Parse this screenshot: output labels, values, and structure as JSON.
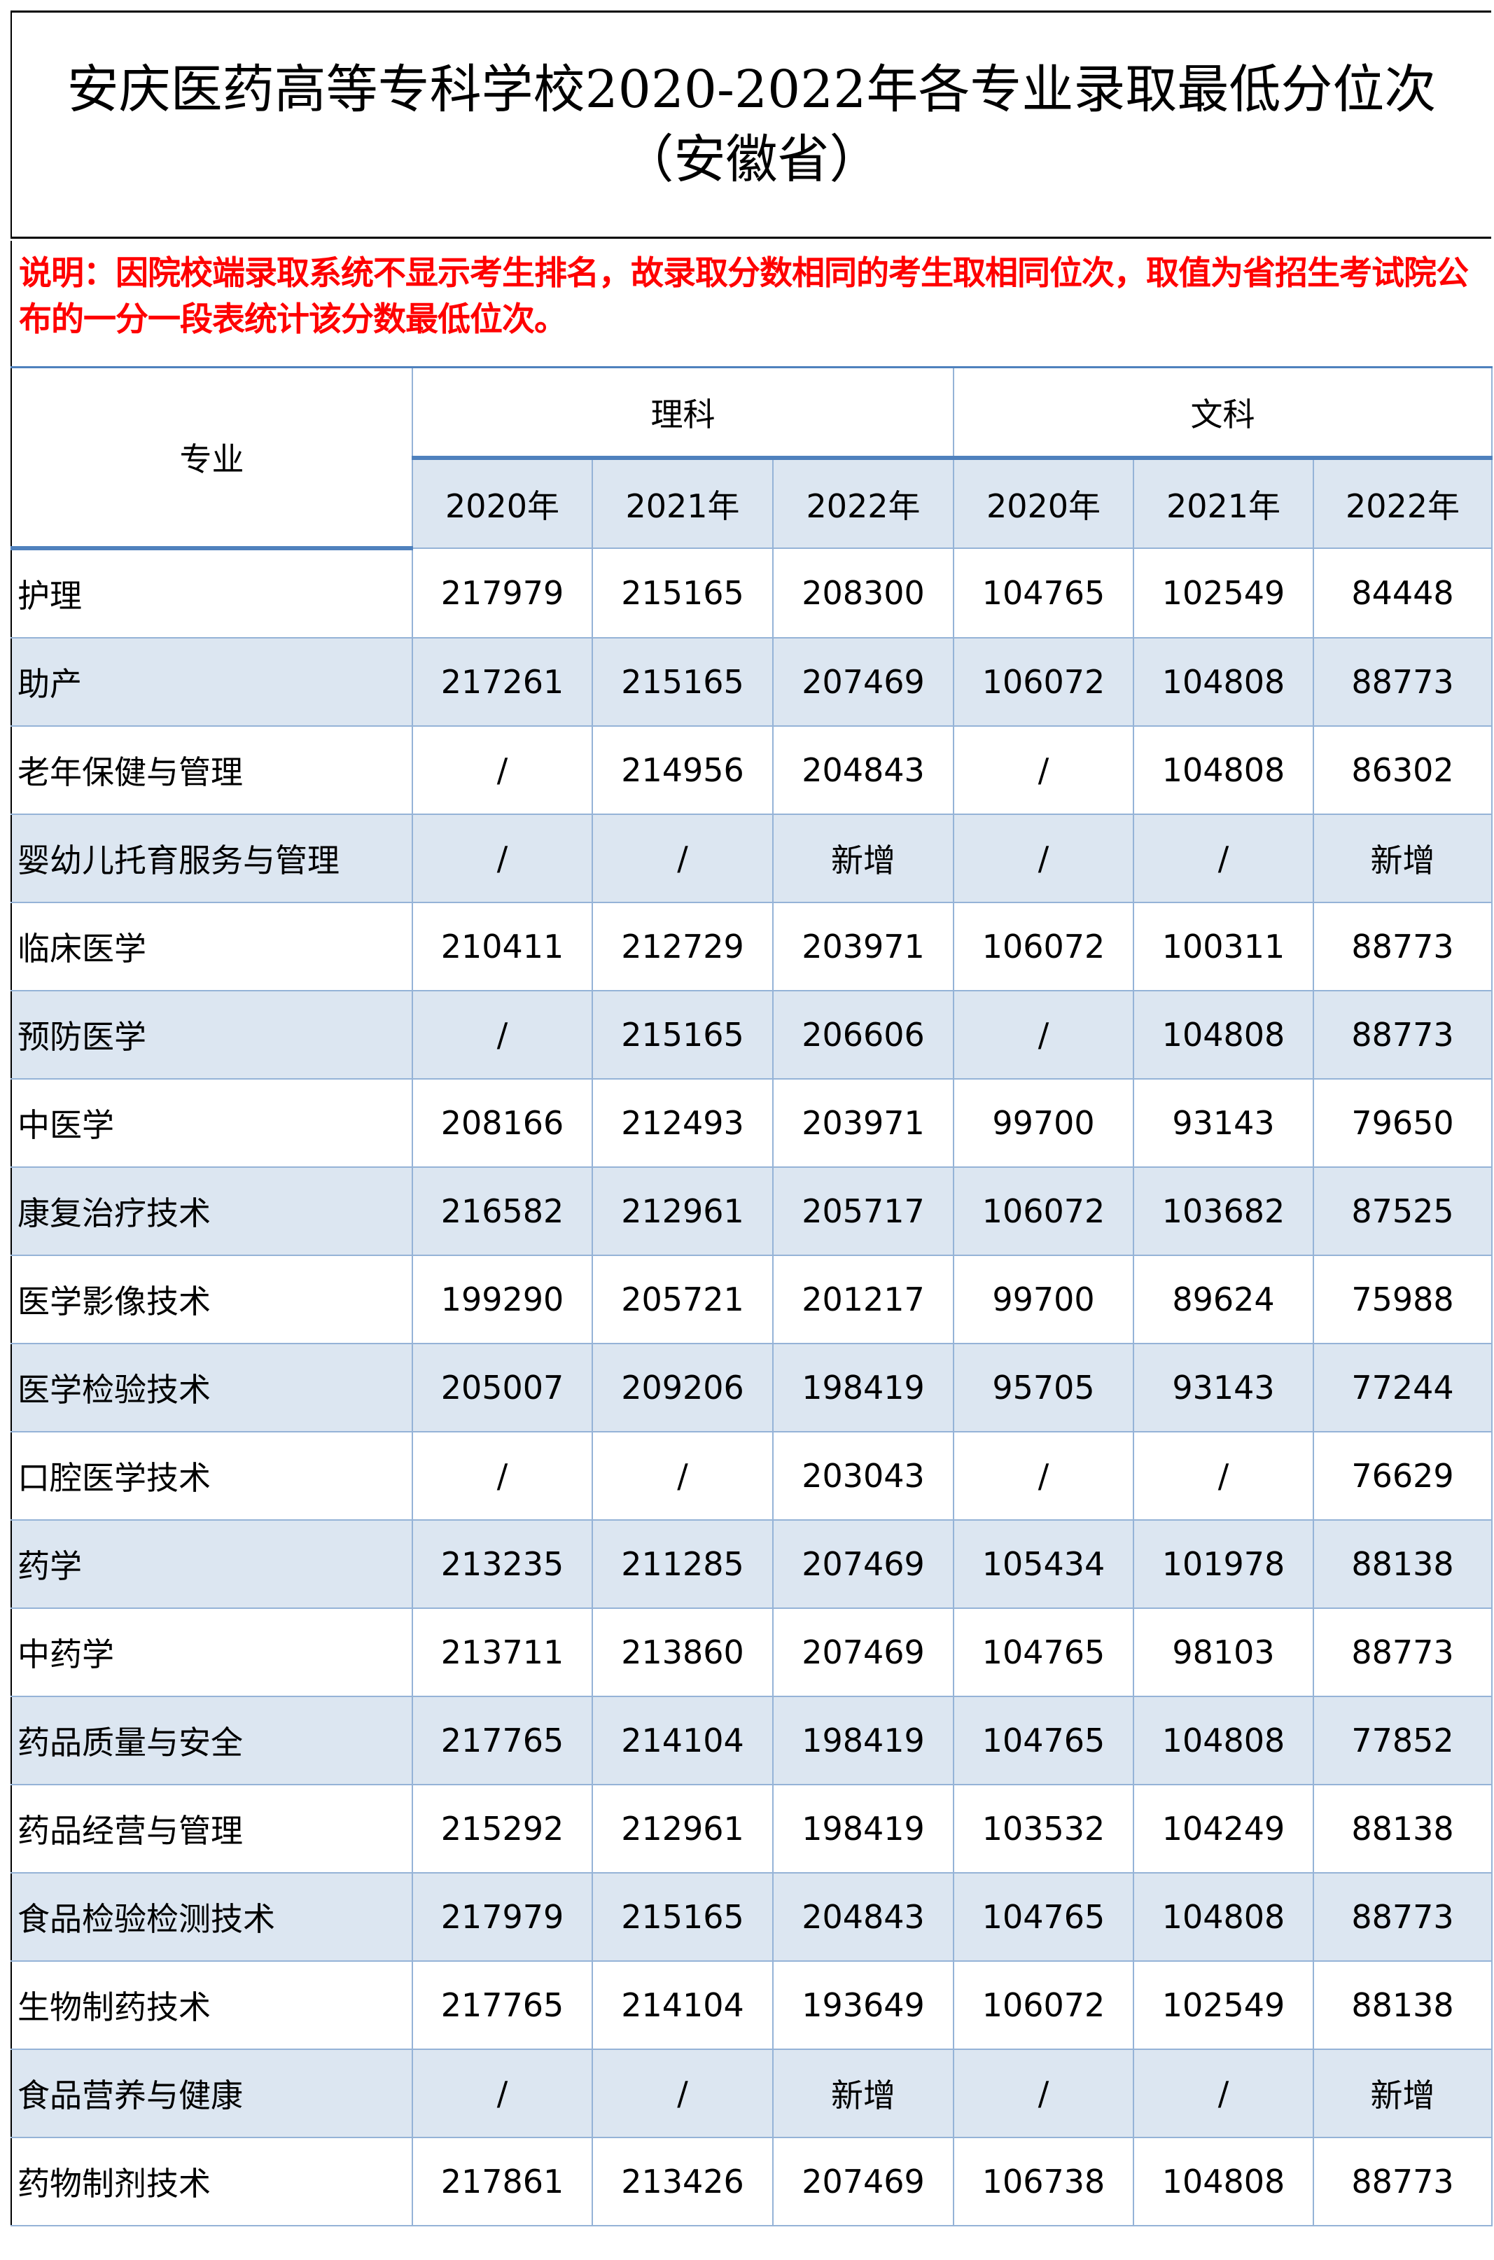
{
  "title": {
    "line1": "安庆医药高等专科学校2020-2022年各专业录取最低分位次",
    "line2": "（安徽省）"
  },
  "note": "说明：因院校端录取系统不显示考生排名，故录取分数相同的考生取相同位次，取值为省招生考试院公布的一分一段表统计该分数最低位次。",
  "table": {
    "major_header": "专业",
    "groups": [
      "理科",
      "文科"
    ],
    "years": [
      "2020年",
      "2021年",
      "2022年",
      "2020年",
      "2021年",
      "2022年"
    ],
    "rows": [
      {
        "name": "护理",
        "values": [
          "217979",
          "215165",
          "208300",
          "104765",
          "102549",
          "84448"
        ]
      },
      {
        "name": "助产",
        "values": [
          "217261",
          "215165",
          "207469",
          "106072",
          "104808",
          "88773"
        ]
      },
      {
        "name": "老年保健与管理",
        "values": [
          "/",
          "214956",
          "204843",
          "/",
          "104808",
          "86302"
        ]
      },
      {
        "name": "婴幼儿托育服务与管理",
        "values": [
          "/",
          "/",
          "新增",
          "/",
          "/",
          "新增"
        ]
      },
      {
        "name": "临床医学",
        "values": [
          "210411",
          "212729",
          "203971",
          "106072",
          "100311",
          "88773"
        ]
      },
      {
        "name": "预防医学",
        "values": [
          "/",
          "215165",
          "206606",
          "/",
          "104808",
          "88773"
        ]
      },
      {
        "name": "中医学",
        "values": [
          "208166",
          "212493",
          "203971",
          "99700",
          "93143",
          "79650"
        ]
      },
      {
        "name": "康复治疗技术",
        "values": [
          "216582",
          "212961",
          "205717",
          "106072",
          "103682",
          "87525"
        ]
      },
      {
        "name": "医学影像技术",
        "values": [
          "199290",
          "205721",
          "201217",
          "99700",
          "89624",
          "75988"
        ]
      },
      {
        "name": "医学检验技术",
        "values": [
          "205007",
          "209206",
          "198419",
          "95705",
          "93143",
          "77244"
        ]
      },
      {
        "name": "口腔医学技术",
        "values": [
          "/",
          "/",
          "203043",
          "/",
          "/",
          "76629"
        ]
      },
      {
        "name": "药学",
        "values": [
          "213235",
          "211285",
          "207469",
          "105434",
          "101978",
          "88138"
        ]
      },
      {
        "name": "中药学",
        "values": [
          "213711",
          "213860",
          "207469",
          "104765",
          "98103",
          "88773"
        ]
      },
      {
        "name": "药品质量与安全",
        "values": [
          "217765",
          "214104",
          "198419",
          "104765",
          "104808",
          "77852"
        ]
      },
      {
        "name": "药品经营与管理",
        "values": [
          "215292",
          "212961",
          "198419",
          "103532",
          "104249",
          "88138"
        ]
      },
      {
        "name": "食品检验检测技术",
        "values": [
          "217979",
          "215165",
          "204843",
          "104765",
          "104808",
          "88773"
        ]
      },
      {
        "name": "生物制药技术",
        "values": [
          "217765",
          "214104",
          "193649",
          "106072",
          "102549",
          "88138"
        ]
      },
      {
        "name": "食品营养与健康",
        "values": [
          "/",
          "/",
          "新增",
          "/",
          "/",
          "新增"
        ]
      },
      {
        "name": "药物制剂技术",
        "values": [
          "217861",
          "213426",
          "207469",
          "106738",
          "104808",
          "88773"
        ]
      }
    ]
  },
  "colors": {
    "note_text": "#ff0000",
    "stripe": "#DCE6F1",
    "border": "#95B3D7",
    "accent_border": "#4F81BD"
  }
}
